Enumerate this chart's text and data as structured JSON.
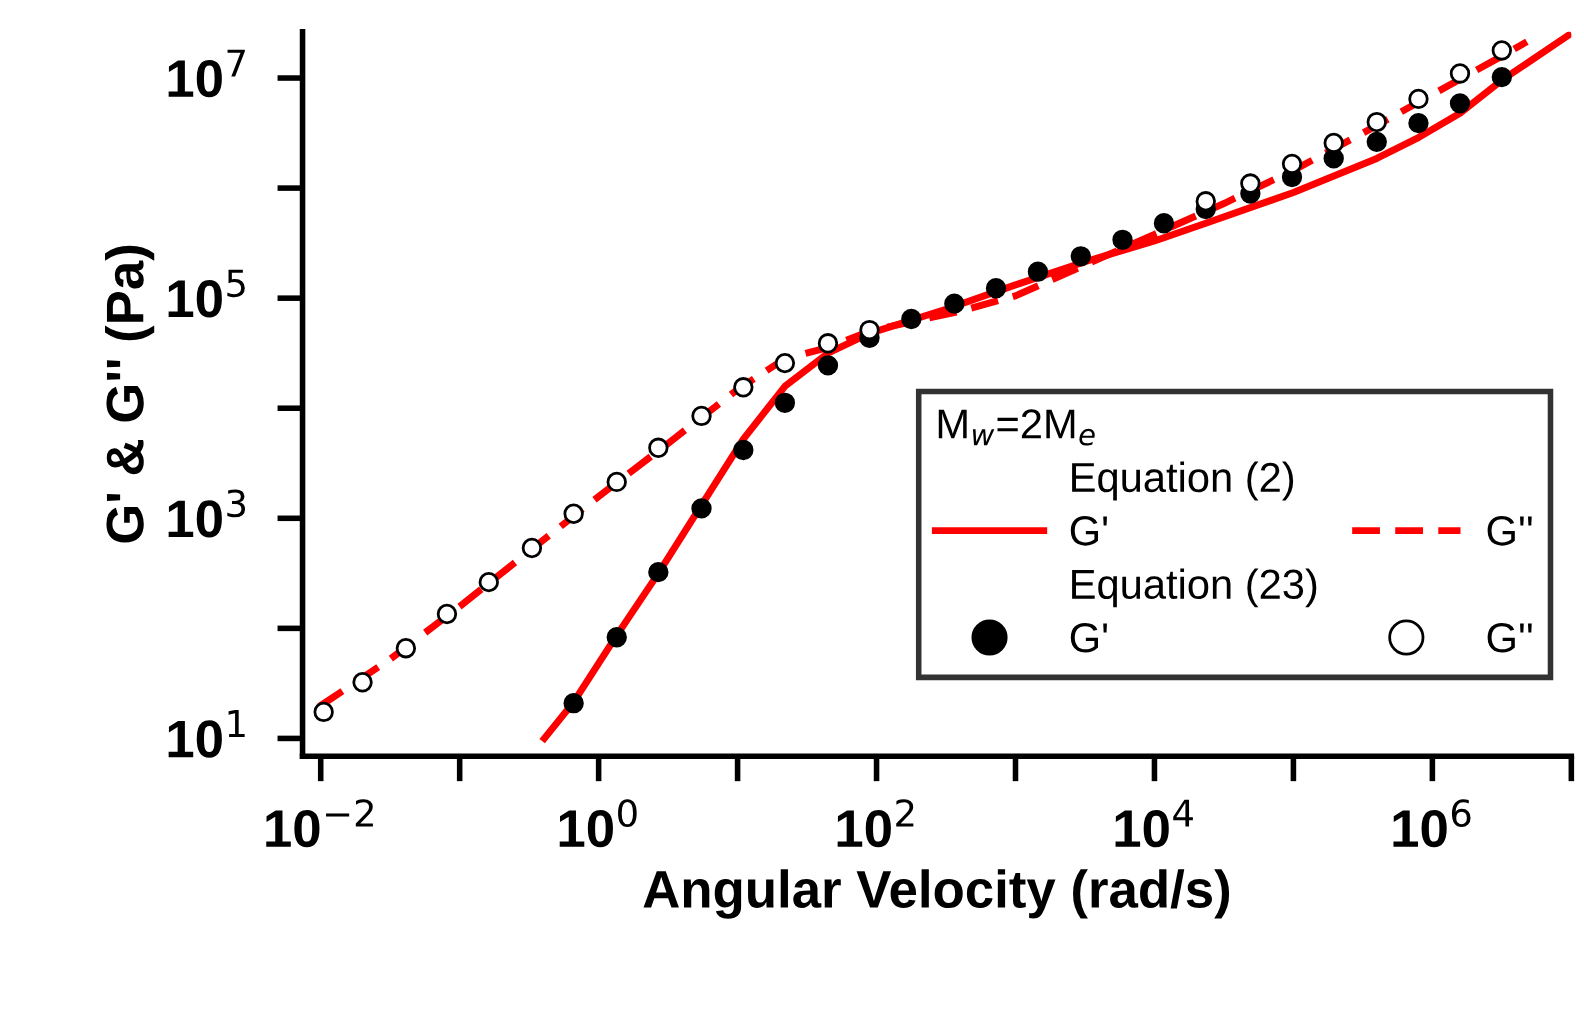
{
  "chart_data": {
    "type": "line",
    "xlabel": "Angular Velocity (rad/s)",
    "ylabel": "G' & G'' (Pa)",
    "log": "xy",
    "legend": "bottom right",
    "legend_title": "M$_{w}$=2M$_{e}$",
    "annotations": [
      "Equation (2)",
      "Equation (23)"
    ],
    "xlim": [
      0.0074,
      10000000
    ],
    "ylim": [
      6.9,
      26300000
    ],
    "xticks": [
      {
        "value": 0.01,
        "label": "10$^{−2}$"
      },
      {
        "value": 0.1,
        "label": null
      },
      {
        "value": 1,
        "label": "10$^{0}$"
      },
      {
        "value": 10,
        "label": null
      },
      {
        "value": 100,
        "label": "10$^{2}$"
      },
      {
        "value": 1000,
        "label": null
      },
      {
        "value": 10000,
        "label": "10$^{4}$"
      },
      {
        "value": 100000,
        "label": null
      },
      {
        "value": 1000000,
        "label": "10$^{6}$"
      },
      {
        "value": 10000000,
        "label": null
      }
    ],
    "yticks": [
      {
        "value": 10,
        "label": "10$^{1}$"
      },
      {
        "value": 100,
        "label": null
      },
      {
        "value": 1000,
        "label": "10$^{3}$"
      },
      {
        "value": 10000,
        "label": null
      },
      {
        "value": 100000,
        "label": "10$^{5}$"
      },
      {
        "value": 1000000,
        "label": null
      },
      {
        "value": 10000000,
        "label": "10$^{7}$"
      }
    ],
    "series": [
      {
        "name": "G'",
        "line_style": "solid",
        "color": "#ff0000",
        "x": [
          0.407,
          0.661,
          1.32,
          2.69,
          5.5,
          11.0,
          21.9,
          44.7,
          89,
          316,
          1000,
          3160,
          10000,
          23400,
          100000,
          398000,
          794000,
          1580000,
          3160000,
          9550000
        ],
        "values": [
          10,
          21.4,
          83,
          316,
          1320,
          5250,
          15800,
          31600,
          47900,
          79400,
          132000,
          214000,
          331000,
          479000,
          912000,
          1860000,
          2880000,
          4790000,
          9550000,
          24500000
        ]
      },
      {
        "name": "G''",
        "line_style": "dashed",
        "color": "#ff0000",
        "x": [
          0.00977,
          0.0316,
          0.1,
          0.316,
          1,
          3.16,
          10,
          21.9,
          44.7,
          89,
          200,
          398,
          1000,
          3160,
          10000,
          31600,
          100000,
          316000,
          1000000,
          3160000,
          4790000
        ],
        "values": [
          19.5,
          52.5,
          158,
          501,
          1580,
          4790,
          14800,
          28200,
          35500,
          50100,
          63100,
          75900,
          105000,
          200000,
          380000,
          724000,
          1450000,
          3160000,
          7080000,
          15800000,
          21400000
        ]
      },
      {
        "name": "G'",
        "type": "scatter",
        "marker": "circle",
        "color": "#000000",
        "x": [
          0.661,
          1.35,
          2.69,
          5.5,
          11.0,
          21.9,
          44.7,
          89,
          178,
          363,
          724,
          1450,
          2950,
          5890,
          11700,
          23400,
          49000,
          97700,
          195000,
          398000,
          794000,
          1580000,
          3160000
        ],
        "values": [
          20.9,
          83,
          324,
          1230,
          4170,
          11200,
          24500,
          43700,
          64600,
          89100,
          123000,
          174000,
          240000,
          339000,
          479000,
          646000,
          891000,
          1260000,
          1860000,
          2630000,
          3890000,
          5890000,
          10200000
        ]
      },
      {
        "name": "G''",
        "type": "scatter",
        "marker": "circle",
        "color": "#ffffff",
        "x": [
          0.0105,
          0.02,
          0.041,
          0.081,
          0.162,
          0.331,
          0.661,
          1.35,
          2.69,
          5.5,
          11.0,
          21.9,
          44.7,
          89,
          178,
          363,
          724,
          1450,
          2950,
          5890,
          11700,
          23400,
          49000,
          97700,
          195000,
          398000,
          794000,
          1580000,
          3160000
        ],
        "values": [
          17.4,
          32.4,
          66,
          135,
          263,
          537,
          1100,
          2140,
          4370,
          8510,
          15500,
          25700,
          38900,
          51300,
          null,
          null,
          null,
          null,
          null,
          null,
          null,
          759000,
          1100000,
          1660000,
          2570000,
          3980000,
          6460000,
          11000000,
          17800000
        ]
      }
    ]
  }
}
